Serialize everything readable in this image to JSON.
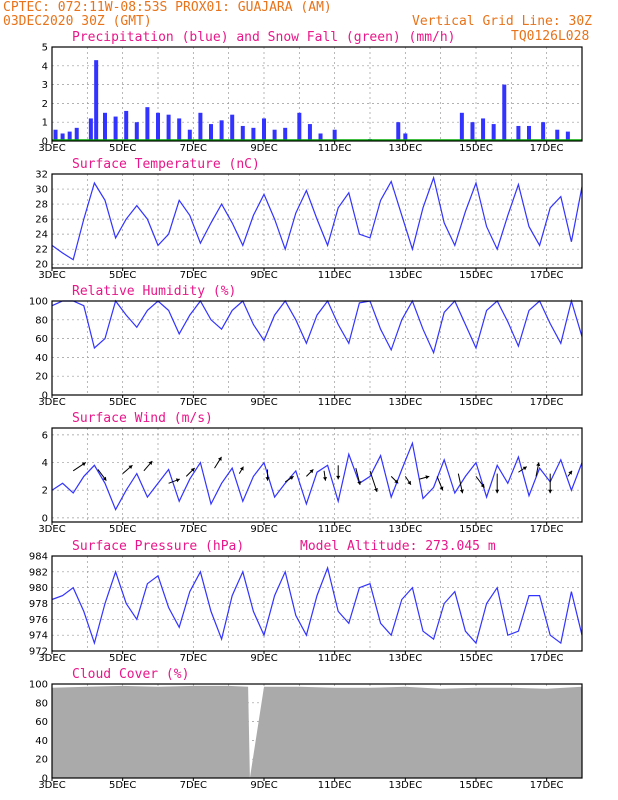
{
  "header": {
    "line1": "CPTEC:   072:11W-08:53S   PROX01: GUAJARA (AM)",
    "line2": "03DEC2020 30Z (GMT)",
    "vgrid": "Vertical Grid Line: 30Z",
    "code": "TQ0126L028"
  },
  "x_axis": {
    "labels": [
      "3DEC",
      "5DEC",
      "7DEC",
      "9DEC",
      "11DEC",
      "13DEC",
      "15DEC",
      "17DEC"
    ],
    "start_day": 3,
    "end_day": 18
  },
  "colors": {
    "title": "#e8178a",
    "header": "#e8731a",
    "line": "#3333ff",
    "precip": "#3333ff",
    "snow": "#00aa00",
    "cloud": "#aaaaaa"
  },
  "chart_data": [
    {
      "type": "bar",
      "title": "Precipitation (blue) and Snow Fall (green) (mm/h)",
      "ylim": [
        0,
        5
      ],
      "yticks": [
        0,
        1,
        2,
        3,
        4,
        5
      ],
      "series": [
        {
          "name": "Precipitation",
          "x": [
            3.1,
            3.3,
            3.5,
            3.7,
            4.1,
            4.25,
            4.5,
            4.8,
            5.1,
            5.4,
            5.7,
            6.0,
            6.3,
            6.6,
            6.9,
            7.2,
            7.5,
            7.8,
            8.1,
            8.4,
            8.7,
            9.0,
            9.3,
            9.6,
            10.0,
            10.3,
            10.6,
            11.0,
            12.0,
            12.8,
            13.0,
            14.6,
            14.9,
            15.2,
            15.5,
            15.8,
            16.2,
            16.5,
            16.9,
            17.3,
            17.6
          ],
          "values": [
            0.6,
            0.4,
            0.5,
            0.7,
            1.2,
            4.3,
            1.5,
            1.3,
            1.6,
            1.0,
            1.8,
            1.5,
            1.4,
            1.2,
            0.6,
            1.5,
            0.9,
            1.1,
            1.4,
            0.8,
            0.7,
            1.2,
            0.6,
            0.7,
            1.5,
            0.9,
            0.4,
            0.6,
            0.1,
            1.0,
            0.4,
            1.5,
            1.0,
            1.2,
            0.9,
            3.0,
            0.8,
            0.8,
            1.0,
            0.6,
            0.5
          ]
        },
        {
          "name": "Snow Fall",
          "x": [],
          "values": []
        }
      ]
    },
    {
      "type": "line",
      "title": "Surface Temperature (nC)",
      "ylim": [
        19.5,
        32
      ],
      "yticks": [
        20,
        22,
        24,
        26,
        28,
        30,
        32
      ],
      "x": [
        3.0,
        3.3,
        3.6,
        3.9,
        4.2,
        4.5,
        4.8,
        5.1,
        5.4,
        5.7,
        6.0,
        6.3,
        6.6,
        6.9,
        7.2,
        7.5,
        7.8,
        8.1,
        8.4,
        8.7,
        9.0,
        9.3,
        9.6,
        9.9,
        10.2,
        10.5,
        10.8,
        11.1,
        11.4,
        11.7,
        12.0,
        12.3,
        12.6,
        12.9,
        13.2,
        13.5,
        13.8,
        14.1,
        14.4,
        14.7,
        15.0,
        15.3,
        15.6,
        15.9,
        16.2,
        16.5,
        16.8,
        17.1,
        17.4,
        17.7,
        18.0
      ],
      "values": [
        22.5,
        21.5,
        20.6,
        26.0,
        30.8,
        28.5,
        23.5,
        26.0,
        27.8,
        26.0,
        22.5,
        24.0,
        28.5,
        26.5,
        22.8,
        25.5,
        28.0,
        25.5,
        22.5,
        26.5,
        29.3,
        26.0,
        22.0,
        26.8,
        29.8,
        26.0,
        22.5,
        27.5,
        29.5,
        24.0,
        23.5,
        28.5,
        31.0,
        26.5,
        22.0,
        27.5,
        31.5,
        25.5,
        22.5,
        27.0,
        30.8,
        25.0,
        22.0,
        26.5,
        30.6,
        25.0,
        22.5,
        27.5,
        29.0,
        23.0,
        30.3
      ]
    },
    {
      "type": "line",
      "title": "Relative Humidity (%)",
      "ylim": [
        0,
        100
      ],
      "yticks": [
        0,
        20,
        40,
        60,
        80,
        100
      ],
      "x": [
        3.0,
        3.3,
        3.6,
        3.9,
        4.2,
        4.5,
        4.8,
        5.1,
        5.4,
        5.7,
        6.0,
        6.3,
        6.6,
        6.9,
        7.2,
        7.5,
        7.8,
        8.1,
        8.4,
        8.7,
        9.0,
        9.3,
        9.6,
        9.9,
        10.2,
        10.5,
        10.8,
        11.1,
        11.4,
        11.7,
        12.0,
        12.3,
        12.6,
        12.9,
        13.2,
        13.5,
        13.8,
        14.1,
        14.4,
        14.7,
        15.0,
        15.3,
        15.6,
        15.9,
        16.2,
        16.5,
        16.8,
        17.1,
        17.4,
        17.7,
        18.0
      ],
      "values": [
        95,
        100,
        100,
        95,
        50,
        60,
        100,
        85,
        72,
        90,
        100,
        90,
        65,
        85,
        100,
        80,
        70,
        90,
        100,
        75,
        58,
        85,
        100,
        80,
        55,
        85,
        100,
        75,
        55,
        98,
        100,
        70,
        48,
        80,
        100,
        70,
        45,
        88,
        100,
        75,
        50,
        90,
        100,
        78,
        52,
        90,
        100,
        76,
        55,
        100,
        62
      ]
    },
    {
      "type": "line",
      "title": "Surface Wind (m/s)",
      "ylim": [
        -0.3,
        6.5
      ],
      "yticks": [
        0,
        2,
        4,
        6
      ],
      "x": [
        3.0,
        3.3,
        3.6,
        3.9,
        4.2,
        4.5,
        4.8,
        5.1,
        5.4,
        5.7,
        6.0,
        6.3,
        6.6,
        6.9,
        7.2,
        7.5,
        7.8,
        8.1,
        8.4,
        8.7,
        9.0,
        9.3,
        9.6,
        9.9,
        10.2,
        10.5,
        10.8,
        11.1,
        11.4,
        11.7,
        12.0,
        12.3,
        12.6,
        12.9,
        13.2,
        13.5,
        13.8,
        14.1,
        14.4,
        14.7,
        15.0,
        15.3,
        15.6,
        15.9,
        16.2,
        16.5,
        16.8,
        17.1,
        17.4,
        17.7,
        18.0
      ],
      "values": [
        2.0,
        2.5,
        1.8,
        3.0,
        3.8,
        2.5,
        0.6,
        2.0,
        3.2,
        1.5,
        2.5,
        3.5,
        1.2,
        2.8,
        4.0,
        1.0,
        2.5,
        3.6,
        1.2,
        3.0,
        4.0,
        1.5,
        2.5,
        3.4,
        1.0,
        3.3,
        3.8,
        1.2,
        4.6,
        2.5,
        3.0,
        4.5,
        1.5,
        3.5,
        5.4,
        1.4,
        2.2,
        4.2,
        1.8,
        3.0,
        4.0,
        1.5,
        3.8,
        2.5,
        4.4,
        1.6,
        3.6,
        2.6,
        4.2,
        2.0,
        4.0
      ],
      "vectors": [
        {
          "x": 3.6,
          "y": 3.4,
          "dx": 0.9,
          "dy": 0.6
        },
        {
          "x": 4.3,
          "y": 3.5,
          "dx": 0.6,
          "dy": -0.8
        },
        {
          "x": 5.0,
          "y": 3.2,
          "dx": 0.7,
          "dy": 0.6
        },
        {
          "x": 5.6,
          "y": 3.4,
          "dx": 0.6,
          "dy": 0.7
        },
        {
          "x": 6.3,
          "y": 2.5,
          "dx": 0.8,
          "dy": 0.3
        },
        {
          "x": 6.8,
          "y": 3.0,
          "dx": 0.6,
          "dy": 0.6
        },
        {
          "x": 7.6,
          "y": 3.6,
          "dx": 0.5,
          "dy": 0.8
        },
        {
          "x": 8.3,
          "y": 3.2,
          "dx": 0.3,
          "dy": 0.5
        },
        {
          "x": 9.1,
          "y": 3.5,
          "dx": 0.0,
          "dy": -0.8
        },
        {
          "x": 9.6,
          "y": 2.6,
          "dx": 0.6,
          "dy": 0.4
        },
        {
          "x": 10.2,
          "y": 3.0,
          "dx": 0.5,
          "dy": 0.5
        },
        {
          "x": 10.7,
          "y": 3.4,
          "dx": 0.1,
          "dy": -0.7
        },
        {
          "x": 11.1,
          "y": 3.8,
          "dx": 0.0,
          "dy": -1.0
        },
        {
          "x": 11.6,
          "y": 3.6,
          "dx": 0.3,
          "dy": -1.2
        },
        {
          "x": 12.0,
          "y": 3.4,
          "dx": 0.5,
          "dy": -1.5
        },
        {
          "x": 12.6,
          "y": 3.0,
          "dx": 0.5,
          "dy": -0.5
        },
        {
          "x": 13.0,
          "y": 3.0,
          "dx": 0.4,
          "dy": -0.6
        },
        {
          "x": 13.4,
          "y": 2.8,
          "dx": 0.7,
          "dy": 0.2
        },
        {
          "x": 13.9,
          "y": 3.0,
          "dx": 0.4,
          "dy": -1.0
        },
        {
          "x": 14.5,
          "y": 3.2,
          "dx": 0.3,
          "dy": -1.4
        },
        {
          "x": 15.0,
          "y": 3.0,
          "dx": 0.6,
          "dy": -0.8
        },
        {
          "x": 15.6,
          "y": 3.2,
          "dx": 0.0,
          "dy": -1.4
        },
        {
          "x": 16.2,
          "y": 3.3,
          "dx": 0.6,
          "dy": 0.4
        },
        {
          "x": 16.7,
          "y": 3.0,
          "dx": 0.2,
          "dy": 1.0
        },
        {
          "x": 17.1,
          "y": 3.2,
          "dx": 0.0,
          "dy": -1.4
        },
        {
          "x": 17.6,
          "y": 3.0,
          "dx": 0.3,
          "dy": 0.4
        }
      ]
    },
    {
      "type": "line",
      "title": "Surface Pressure (hPa)",
      "subtitle": "Model Altitude: 273.045 m",
      "ylim": [
        972,
        984
      ],
      "yticks": [
        972,
        974,
        976,
        978,
        980,
        982,
        984
      ],
      "x": [
        3.0,
        3.3,
        3.6,
        3.9,
        4.2,
        4.5,
        4.8,
        5.1,
        5.4,
        5.7,
        6.0,
        6.3,
        6.6,
        6.9,
        7.2,
        7.5,
        7.8,
        8.1,
        8.4,
        8.7,
        9.0,
        9.3,
        9.6,
        9.9,
        10.2,
        10.5,
        10.8,
        11.1,
        11.4,
        11.7,
        12.0,
        12.3,
        12.6,
        12.9,
        13.2,
        13.5,
        13.8,
        14.1,
        14.4,
        14.7,
        15.0,
        15.3,
        15.6,
        15.9,
        16.2,
        16.5,
        16.8,
        17.1,
        17.4,
        17.7,
        18.0
      ],
      "values": [
        978.5,
        979.0,
        980.0,
        977.0,
        973.0,
        978.0,
        982.0,
        978.0,
        976.0,
        980.5,
        981.5,
        977.5,
        975.0,
        979.5,
        982.0,
        977.0,
        973.5,
        979.0,
        982.0,
        977.0,
        974.0,
        979.0,
        982.0,
        976.5,
        974.0,
        979.0,
        982.5,
        977.0,
        975.5,
        980.0,
        980.5,
        975.5,
        974.0,
        978.5,
        980.0,
        974.5,
        973.5,
        978.0,
        979.5,
        974.5,
        973.0,
        978.0,
        980.0,
        974.0,
        974.5,
        979.0,
        979.0,
        974.0,
        973.0,
        979.5,
        974.0
      ]
    },
    {
      "type": "area",
      "title": "Cloud Cover (%)",
      "ylim": [
        0,
        100
      ],
      "yticks": [
        0,
        20,
        40,
        60,
        80,
        100
      ],
      "x": [
        3.0,
        4.0,
        5.0,
        6.0,
        7.0,
        8.0,
        8.55,
        8.6,
        9.0,
        10.0,
        11.0,
        12.0,
        13.0,
        14.0,
        15.0,
        16.0,
        17.0,
        18.0
      ],
      "values": [
        96,
        97,
        98,
        97,
        98,
        98,
        97,
        0,
        97,
        97,
        96,
        96,
        97,
        95,
        96,
        96,
        95,
        97
      ]
    }
  ]
}
